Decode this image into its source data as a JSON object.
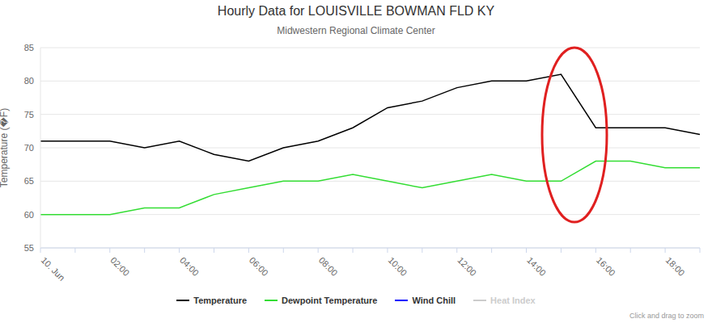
{
  "chart_data": {
    "type": "line",
    "title": "Hourly Data for LOUISVILLE BOWMAN FLD KY",
    "subtitle": "Midwestern Regional Climate Center",
    "y_label": "Temperature (�F)",
    "annotations": [
      "Click and drag to zoom"
    ],
    "categories": [
      "10. Jun",
      null,
      "02:00",
      null,
      "04:00",
      null,
      "06:00",
      null,
      "08:00",
      null,
      "10:00",
      null,
      "12:00",
      null,
      "14:00",
      null,
      "16:00",
      null,
      "18:00",
      null
    ],
    "series": [
      {
        "name": "Temperature",
        "color": "#000000",
        "values": [
          71,
          71,
          71,
          70,
          71,
          69,
          68,
          70,
          71,
          73,
          76,
          77,
          79,
          80,
          80,
          81,
          73,
          73,
          73,
          72
        ]
      },
      {
        "name": "Dewpoint Temperature",
        "color": "#33dd33",
        "values": [
          60,
          60,
          60,
          61,
          61,
          63,
          64,
          65,
          65,
          66,
          65,
          64,
          65,
          66,
          65,
          65,
          68,
          68,
          67,
          67
        ]
      },
      {
        "name": "Wind Chill",
        "color": "#0000ff",
        "values": [
          null,
          null,
          null,
          null,
          null,
          null,
          null,
          null,
          null,
          null,
          null,
          null,
          null,
          null,
          null,
          null,
          null,
          null,
          null,
          null
        ]
      },
      {
        "name": "Heat Index",
        "color": "#cccccc",
        "values": [
          null,
          null,
          null,
          null,
          null,
          null,
          null,
          null,
          null,
          null,
          null,
          null,
          null,
          null,
          null,
          null,
          null,
          null,
          null,
          null
        ]
      }
    ],
    "ylim": [
      55,
      85
    ],
    "yticks": [
      55,
      60,
      65,
      70,
      75,
      80,
      85
    ],
    "grid": true,
    "marker": "none",
    "legend": "bottom"
  }
}
